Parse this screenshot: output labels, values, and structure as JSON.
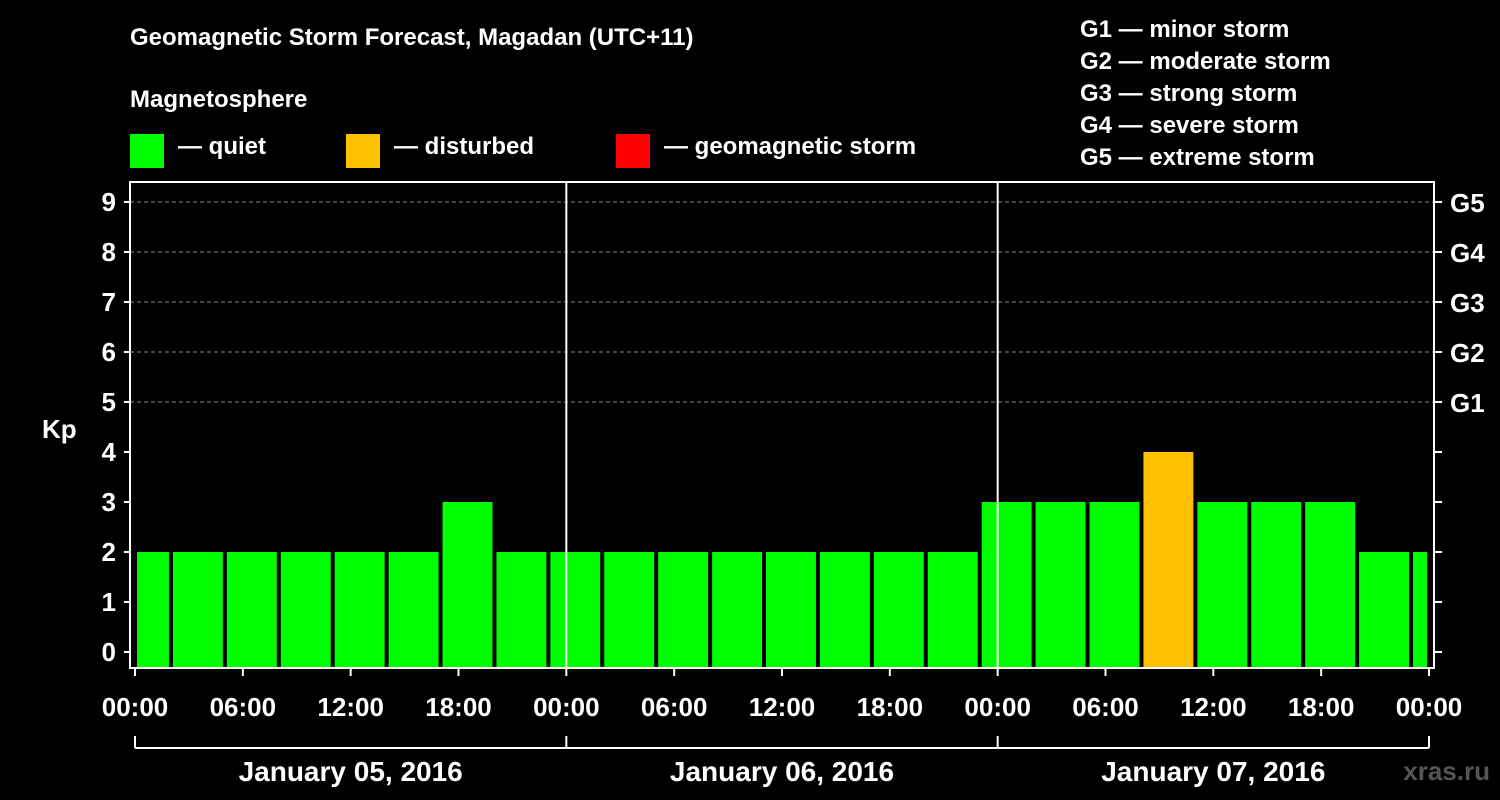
{
  "header": {
    "title": "Geomagnetic Storm Forecast, Magadan (UTC+11)",
    "magnetosphere_label": "Magnetosphere"
  },
  "legend": {
    "items": [
      {
        "label": "— quiet",
        "color": "#00ff00"
      },
      {
        "label": "— disturbed",
        "color": "#ffc000"
      },
      {
        "label": "— geomagnetic storm",
        "color": "#ff0000"
      }
    ]
  },
  "g_scale": [
    "G1 — minor storm",
    "G2 — moderate storm",
    "G3 — strong storm",
    "G4 — severe storm",
    "G5 — extreme storm"
  ],
  "watermark": "xras.ru",
  "chart_data": {
    "type": "bar",
    "title": "Geomagnetic Storm Forecast, Magadan (UTC+11)",
    "ylabel": "Kp",
    "ylim": [
      0,
      9
    ],
    "y_ticks": [
      "0",
      "1",
      "2",
      "3",
      "4",
      "5",
      "6",
      "7",
      "8",
      "9"
    ],
    "right_ticks": [
      {
        "kp": 5,
        "label": "G1"
      },
      {
        "kp": 6,
        "label": "G2"
      },
      {
        "kp": 7,
        "label": "G3"
      },
      {
        "kp": 8,
        "label": "G4"
      },
      {
        "kp": 9,
        "label": "G5"
      }
    ],
    "hours_range": [
      0,
      72
    ],
    "x_ticks": [
      {
        "hour": 0,
        "label": "00:00"
      },
      {
        "hour": 6,
        "label": "06:00"
      },
      {
        "hour": 12,
        "label": "12:00"
      },
      {
        "hour": 18,
        "label": "18:00"
      },
      {
        "hour": 24,
        "label": "00:00"
      },
      {
        "hour": 30,
        "label": "06:00"
      },
      {
        "hour": 36,
        "label": "12:00"
      },
      {
        "hour": 42,
        "label": "18:00"
      },
      {
        "hour": 48,
        "label": "00:00"
      },
      {
        "hour": 54,
        "label": "06:00"
      },
      {
        "hour": 60,
        "label": "12:00"
      },
      {
        "hour": 66,
        "label": "18:00"
      },
      {
        "hour": 72,
        "label": "00:00"
      }
    ],
    "days": [
      "January 05, 2016",
      "January 06, 2016",
      "January 07, 2016"
    ],
    "bars": [
      {
        "start": 0,
        "end": 2,
        "kp": 2,
        "status": "quiet"
      },
      {
        "start": 2,
        "end": 5,
        "kp": 2,
        "status": "quiet"
      },
      {
        "start": 5,
        "end": 8,
        "kp": 2,
        "status": "quiet"
      },
      {
        "start": 8,
        "end": 11,
        "kp": 2,
        "status": "quiet"
      },
      {
        "start": 11,
        "end": 14,
        "kp": 2,
        "status": "quiet"
      },
      {
        "start": 14,
        "end": 17,
        "kp": 2,
        "status": "quiet"
      },
      {
        "start": 17,
        "end": 20,
        "kp": 3,
        "status": "quiet"
      },
      {
        "start": 20,
        "end": 23,
        "kp": 2,
        "status": "quiet"
      },
      {
        "start": 23,
        "end": 26,
        "kp": 2,
        "status": "quiet"
      },
      {
        "start": 26,
        "end": 29,
        "kp": 2,
        "status": "quiet"
      },
      {
        "start": 29,
        "end": 32,
        "kp": 2,
        "status": "quiet"
      },
      {
        "start": 32,
        "end": 35,
        "kp": 2,
        "status": "quiet"
      },
      {
        "start": 35,
        "end": 38,
        "kp": 2,
        "status": "quiet"
      },
      {
        "start": 38,
        "end": 41,
        "kp": 2,
        "status": "quiet"
      },
      {
        "start": 41,
        "end": 44,
        "kp": 2,
        "status": "quiet"
      },
      {
        "start": 44,
        "end": 47,
        "kp": 2,
        "status": "quiet"
      },
      {
        "start": 47,
        "end": 50,
        "kp": 3,
        "status": "quiet"
      },
      {
        "start": 50,
        "end": 53,
        "kp": 3,
        "status": "quiet"
      },
      {
        "start": 53,
        "end": 56,
        "kp": 3,
        "status": "quiet"
      },
      {
        "start": 56,
        "end": 59,
        "kp": 4,
        "status": "disturbed"
      },
      {
        "start": 59,
        "end": 62,
        "kp": 3,
        "status": "quiet"
      },
      {
        "start": 62,
        "end": 65,
        "kp": 3,
        "status": "quiet"
      },
      {
        "start": 65,
        "end": 68,
        "kp": 3,
        "status": "quiet"
      },
      {
        "start": 68,
        "end": 71,
        "kp": 2,
        "status": "quiet"
      },
      {
        "start": 71,
        "end": 72,
        "kp": 2,
        "status": "quiet"
      }
    ],
    "status_colors": {
      "quiet": "#00ff00",
      "disturbed": "#ffc000",
      "storm": "#ff0000"
    }
  }
}
